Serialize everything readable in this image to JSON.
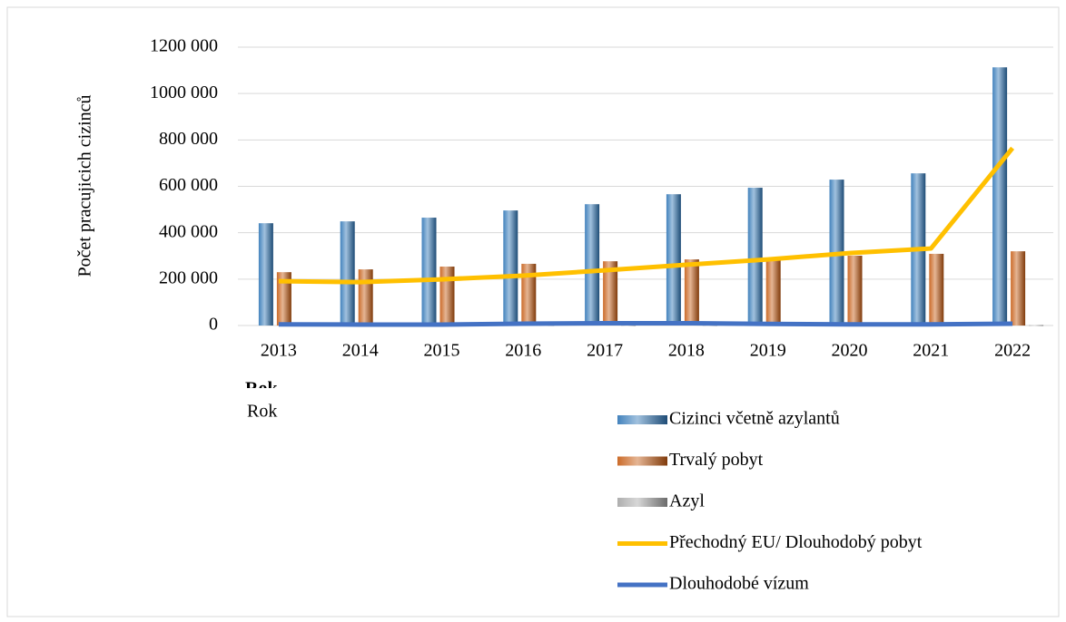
{
  "chart_data": {
    "type": "bar",
    "y_label": "Počet pracujicich cizinců",
    "x_label": "Rok",
    "categories": [
      "2013",
      "2014",
      "2015",
      "2016",
      "2017",
      "2018",
      "2019",
      "2020",
      "2021",
      "2022"
    ],
    "series": [
      {
        "name": "Cizinci včetně azylantů",
        "type": "bar",
        "color": "#2e75b6",
        "values": [
          441000,
          449000,
          465000,
          496000,
          523000,
          566000,
          594000,
          629000,
          656000,
          1113000
        ]
      },
      {
        "name": "Trvalý pobyt",
        "type": "bar",
        "color": "#c55a11",
        "values": [
          230000,
          242000,
          254000,
          266000,
          277000,
          285000,
          292000,
          301000,
          309000,
          320000
        ]
      },
      {
        "name": "Azyl",
        "type": "bar",
        "color": "#a5a5a5",
        "values": [
          2000,
          2000,
          2000,
          2000,
          2000,
          2000,
          2000,
          2000,
          2000,
          2000
        ]
      },
      {
        "name": "Přechodný EU/ Dlouhodobý pobyt",
        "type": "line",
        "color": "#ffc000",
        "values": [
          191000,
          187000,
          199000,
          215000,
          238000,
          262000,
          285000,
          312000,
          332000,
          765000
        ]
      },
      {
        "name": "Dlouhodobé vízum",
        "type": "line",
        "color": "#4472c4",
        "values": [
          5000,
          4000,
          4000,
          8000,
          10000,
          10000,
          7000,
          5000,
          5000,
          8000
        ]
      }
    ],
    "ylim": [
      0,
      1200000
    ],
    "yticks": [
      0,
      {
        "value": 200000,
        "label": "200 000"
      },
      {
        "value": 400000,
        "label": "400 000"
      },
      {
        "value": 600000,
        "label": "600 000"
      },
      {
        "value": 800000,
        "label": "800 000"
      },
      {
        "value": 1000000,
        "label": "1000 000"
      },
      {
        "value": 1200000,
        "label": "1200 000"
      }
    ],
    "grid": true,
    "legend": "bottom-right"
  }
}
